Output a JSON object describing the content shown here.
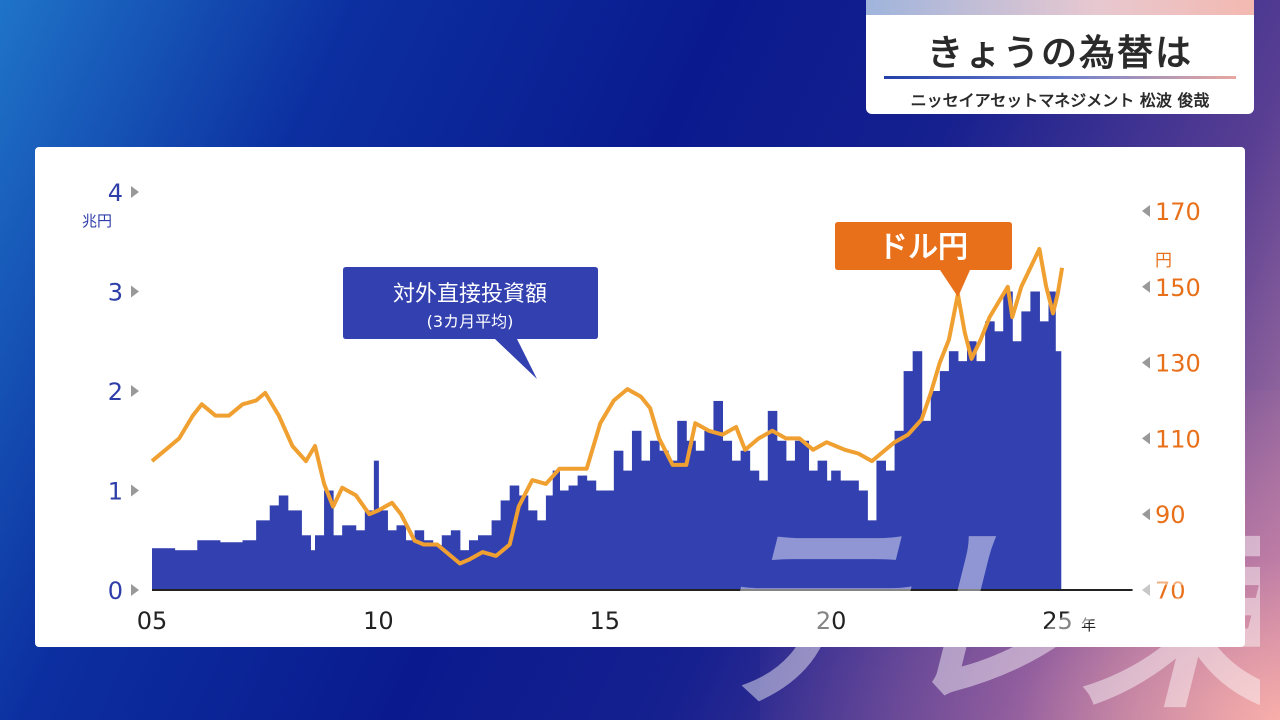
{
  "header": {
    "title": "きょうの為替は",
    "subtitle": "ニッセイアセットマネジメント 松波 俊哉"
  },
  "watermark": "テレ東",
  "chart_data": {
    "type": "bar+line",
    "left_axis": {
      "unit": "兆円",
      "ticks": [
        "0",
        "1",
        "2",
        "3",
        "4"
      ],
      "range": [
        0,
        4
      ],
      "color": "#2e3ea8"
    },
    "right_axis": {
      "unit": "円",
      "ticks": [
        "70",
        "90",
        "110",
        "130",
        "150",
        "170"
      ],
      "range": [
        70,
        175
      ],
      "color": "#e8701a"
    },
    "x_axis": {
      "unit": "年",
      "ticks": [
        "05",
        "10",
        "15",
        "20",
        "25"
      ],
      "range": [
        2005,
        2026.6
      ]
    },
    "series": [
      {
        "name": "対外直接投資額",
        "note": "(3カ月平均)",
        "kind": "bar",
        "axis": "left",
        "color": "#3340b0",
        "points": [
          [
            2005.0,
            0.42
          ],
          [
            2005.5,
            0.4
          ],
          [
            2006.0,
            0.5
          ],
          [
            2006.5,
            0.48
          ],
          [
            2007.0,
            0.5
          ],
          [
            2007.3,
            0.7
          ],
          [
            2007.6,
            0.85
          ],
          [
            2007.8,
            0.95
          ],
          [
            2008.0,
            0.8
          ],
          [
            2008.3,
            0.55
          ],
          [
            2008.5,
            0.4
          ],
          [
            2008.6,
            0.55
          ],
          [
            2008.8,
            1.0
          ],
          [
            2009.0,
            0.55
          ],
          [
            2009.2,
            0.65
          ],
          [
            2009.5,
            0.6
          ],
          [
            2009.7,
            0.8
          ],
          [
            2009.9,
            1.3
          ],
          [
            2010.0,
            0.8
          ],
          [
            2010.2,
            0.6
          ],
          [
            2010.4,
            0.65
          ],
          [
            2010.6,
            0.5
          ],
          [
            2010.8,
            0.6
          ],
          [
            2011.0,
            0.5
          ],
          [
            2011.2,
            0.45
          ],
          [
            2011.4,
            0.55
          ],
          [
            2011.6,
            0.6
          ],
          [
            2011.8,
            0.4
          ],
          [
            2012.0,
            0.5
          ],
          [
            2012.2,
            0.55
          ],
          [
            2012.5,
            0.7
          ],
          [
            2012.7,
            0.9
          ],
          [
            2012.9,
            1.05
          ],
          [
            2013.1,
            0.95
          ],
          [
            2013.3,
            0.8
          ],
          [
            2013.5,
            0.7
          ],
          [
            2013.7,
            0.95
          ],
          [
            2013.85,
            1.2
          ],
          [
            2014.0,
            1.0
          ],
          [
            2014.2,
            1.05
          ],
          [
            2014.4,
            1.15
          ],
          [
            2014.6,
            1.1
          ],
          [
            2014.8,
            1.0
          ],
          [
            2015.0,
            1.0
          ],
          [
            2015.2,
            1.4
          ],
          [
            2015.4,
            1.2
          ],
          [
            2015.6,
            1.6
          ],
          [
            2015.8,
            1.3
          ],
          [
            2016.0,
            1.5
          ],
          [
            2016.2,
            1.4
          ],
          [
            2016.4,
            1.3
          ],
          [
            2016.6,
            1.7
          ],
          [
            2016.8,
            1.5
          ],
          [
            2017.0,
            1.4
          ],
          [
            2017.2,
            1.6
          ],
          [
            2017.4,
            1.9
          ],
          [
            2017.6,
            1.5
          ],
          [
            2017.8,
            1.3
          ],
          [
            2018.0,
            1.4
          ],
          [
            2018.2,
            1.2
          ],
          [
            2018.4,
            1.1
          ],
          [
            2018.6,
            1.8
          ],
          [
            2018.8,
            1.5
          ],
          [
            2019.0,
            1.3
          ],
          [
            2019.2,
            1.5
          ],
          [
            2019.5,
            1.2
          ],
          [
            2019.7,
            1.3
          ],
          [
            2019.9,
            1.1
          ],
          [
            2020.0,
            1.2
          ],
          [
            2020.2,
            1.1
          ],
          [
            2020.4,
            1.1
          ],
          [
            2020.6,
            1.0
          ],
          [
            2020.8,
            0.7
          ],
          [
            2021.0,
            1.3
          ],
          [
            2021.2,
            1.2
          ],
          [
            2021.4,
            1.6
          ],
          [
            2021.6,
            2.2
          ],
          [
            2021.8,
            2.4
          ],
          [
            2022.0,
            1.7
          ],
          [
            2022.2,
            2.0
          ],
          [
            2022.4,
            2.2
          ],
          [
            2022.6,
            2.4
          ],
          [
            2022.8,
            2.3
          ],
          [
            2023.0,
            2.5
          ],
          [
            2023.2,
            2.3
          ],
          [
            2023.4,
            2.7
          ],
          [
            2023.6,
            2.6
          ],
          [
            2023.8,
            3.0
          ],
          [
            2024.0,
            2.5
          ],
          [
            2024.2,
            2.8
          ],
          [
            2024.4,
            3.0
          ],
          [
            2024.6,
            2.7
          ],
          [
            2024.8,
            3.0
          ],
          [
            2024.95,
            2.4
          ]
        ]
      },
      {
        "name": "ドル円",
        "kind": "line",
        "axis": "right",
        "color": "#f0a030",
        "points": [
          [
            2005.0,
            104
          ],
          [
            2005.3,
            107
          ],
          [
            2005.6,
            110
          ],
          [
            2005.9,
            116
          ],
          [
            2006.1,
            119
          ],
          [
            2006.4,
            116
          ],
          [
            2006.7,
            116
          ],
          [
            2007.0,
            119
          ],
          [
            2007.3,
            120
          ],
          [
            2007.5,
            122
          ],
          [
            2007.8,
            116
          ],
          [
            2008.1,
            108
          ],
          [
            2008.4,
            104
          ],
          [
            2008.6,
            108
          ],
          [
            2008.8,
            98
          ],
          [
            2009.0,
            92
          ],
          [
            2009.2,
            97
          ],
          [
            2009.5,
            95
          ],
          [
            2009.8,
            90
          ],
          [
            2010.0,
            91
          ],
          [
            2010.3,
            93
          ],
          [
            2010.5,
            90
          ],
          [
            2010.8,
            83
          ],
          [
            2011.0,
            82
          ],
          [
            2011.3,
            82
          ],
          [
            2011.6,
            79
          ],
          [
            2011.8,
            77
          ],
          [
            2012.0,
            78
          ],
          [
            2012.3,
            80
          ],
          [
            2012.6,
            79
          ],
          [
            2012.9,
            82
          ],
          [
            2013.1,
            92
          ],
          [
            2013.4,
            99
          ],
          [
            2013.7,
            98
          ],
          [
            2014.0,
            102
          ],
          [
            2014.3,
            102
          ],
          [
            2014.6,
            102
          ],
          [
            2014.9,
            114
          ],
          [
            2015.2,
            120
          ],
          [
            2015.5,
            123
          ],
          [
            2015.8,
            121
          ],
          [
            2016.0,
            118
          ],
          [
            2016.2,
            110
          ],
          [
            2016.5,
            103
          ],
          [
            2016.8,
            103
          ],
          [
            2017.0,
            114
          ],
          [
            2017.3,
            112
          ],
          [
            2017.6,
            111
          ],
          [
            2017.9,
            113
          ],
          [
            2018.1,
            107
          ],
          [
            2018.4,
            110
          ],
          [
            2018.7,
            112
          ],
          [
            2019.0,
            110
          ],
          [
            2019.3,
            110
          ],
          [
            2019.6,
            107
          ],
          [
            2019.9,
            109
          ],
          [
            2020.1,
            108
          ],
          [
            2020.3,
            107
          ],
          [
            2020.6,
            106
          ],
          [
            2020.9,
            104
          ],
          [
            2021.1,
            106
          ],
          [
            2021.4,
            109
          ],
          [
            2021.7,
            111
          ],
          [
            2022.0,
            115
          ],
          [
            2022.2,
            122
          ],
          [
            2022.4,
            130
          ],
          [
            2022.6,
            136
          ],
          [
            2022.8,
            148
          ],
          [
            2022.95,
            138
          ],
          [
            2023.1,
            131
          ],
          [
            2023.3,
            136
          ],
          [
            2023.5,
            142
          ],
          [
            2023.7,
            146
          ],
          [
            2023.9,
            150
          ],
          [
            2024.0,
            142
          ],
          [
            2024.2,
            150
          ],
          [
            2024.4,
            155
          ],
          [
            2024.6,
            160
          ],
          [
            2024.75,
            150
          ],
          [
            2024.9,
            143
          ],
          [
            2025.0,
            148
          ],
          [
            2025.1,
            155
          ]
        ]
      }
    ],
    "annotations": [
      {
        "text": "対外直接投資額",
        "sub": "(3カ月平均)",
        "style": "blue-callout"
      },
      {
        "text": "ドル円",
        "style": "orange-callout"
      }
    ]
  }
}
